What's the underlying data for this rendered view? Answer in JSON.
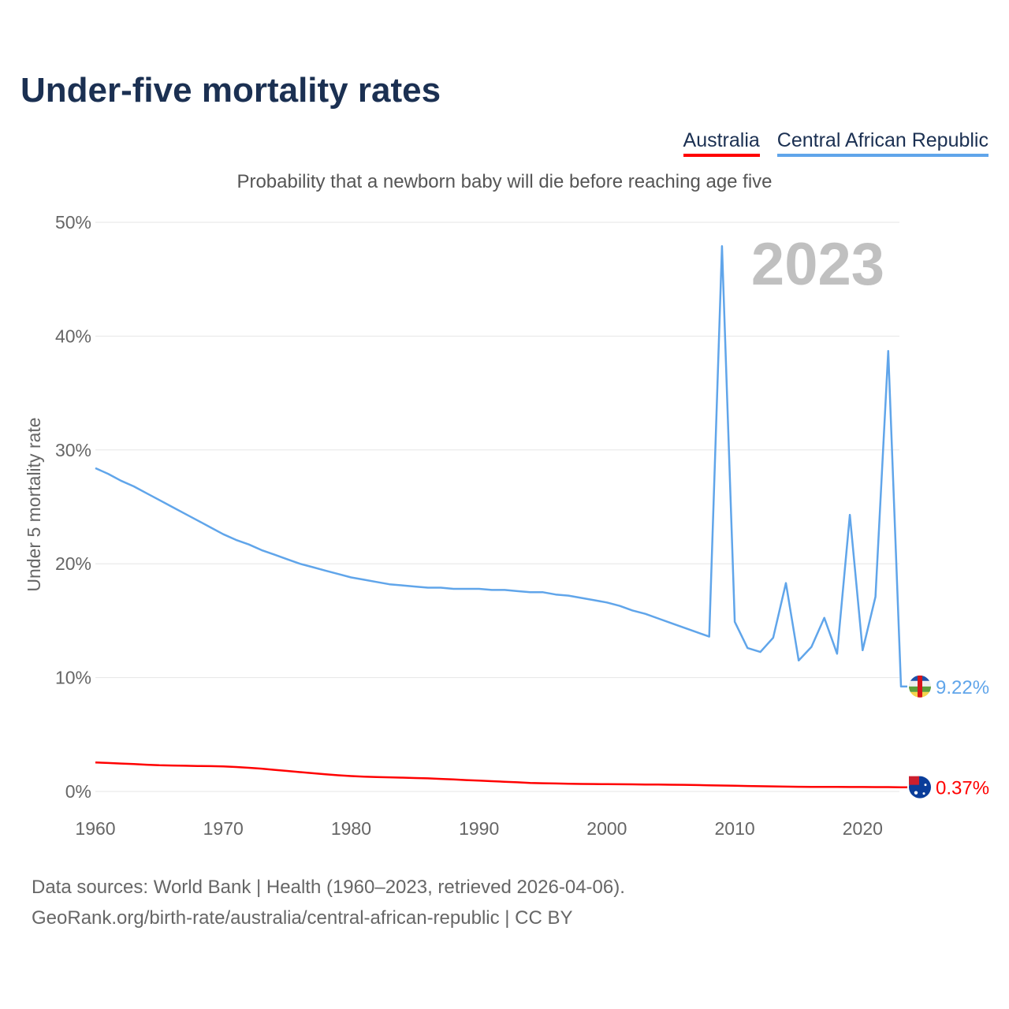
{
  "title": "Under-five mortality rates",
  "subtitle": "Probability that a newborn baby will die before reaching age five",
  "source_line1": "Data sources: World Bank | Health (1960–2023, retrieved 2026-04-06).",
  "source_line2": "GeoRank.org/birth-rate/australia/central-african-republic | CC BY",
  "legend": [
    {
      "label": "Australia",
      "color": "#ff0000"
    },
    {
      "label": "Central African Republic",
      "color": "#60a5ea"
    }
  ],
  "chart_data": {
    "type": "line",
    "title": "Under-five mortality rates",
    "ylabel": "Under 5 mortality rate",
    "xlabel": "",
    "year_label": "2023",
    "xlim": [
      1960,
      2023
    ],
    "ylim": [
      0,
      50
    ],
    "x_ticks": [
      1960,
      1970,
      1980,
      1990,
      2000,
      2010,
      2020
    ],
    "y_ticks": [
      0,
      10,
      20,
      30,
      40,
      50
    ],
    "y_tick_labels": [
      "0%",
      "10%",
      "20%",
      "30%",
      "40%",
      "50%"
    ],
    "grid": true,
    "x_start": 1960,
    "series": [
      {
        "name": "Central African Republic",
        "color": "#60a5ea",
        "end_label": "9.22%",
        "values": [
          28.4,
          27.9,
          27.3,
          26.8,
          26.2,
          25.6,
          25.0,
          24.4,
          23.8,
          23.2,
          22.6,
          22.1,
          21.7,
          21.2,
          20.8,
          20.4,
          20.0,
          19.7,
          19.4,
          19.1,
          18.8,
          18.6,
          18.4,
          18.2,
          18.1,
          18.0,
          17.9,
          17.9,
          17.8,
          17.8,
          17.8,
          17.7,
          17.7,
          17.6,
          17.5,
          17.5,
          17.3,
          17.2,
          17.0,
          16.8,
          16.6,
          16.3,
          15.9,
          15.6,
          15.2,
          14.8,
          14.4,
          14.0,
          13.6,
          47.9,
          14.9,
          12.6,
          12.25,
          13.5,
          18.3,
          11.5,
          12.7,
          15.25,
          12.1,
          24.3,
          12.4,
          17.1,
          38.7,
          9.22
        ]
      },
      {
        "name": "Australia",
        "color": "#ff0000",
        "end_label": "0.37%",
        "values": [
          2.55,
          2.5,
          2.45,
          2.4,
          2.35,
          2.3,
          2.28,
          2.26,
          2.24,
          2.22,
          2.2,
          2.15,
          2.08,
          2.0,
          1.9,
          1.8,
          1.7,
          1.6,
          1.5,
          1.42,
          1.35,
          1.3,
          1.27,
          1.24,
          1.21,
          1.18,
          1.15,
          1.1,
          1.05,
          1.0,
          0.95,
          0.9,
          0.85,
          0.8,
          0.75,
          0.72,
          0.7,
          0.68,
          0.66,
          0.65,
          0.64,
          0.63,
          0.62,
          0.61,
          0.6,
          0.59,
          0.58,
          0.56,
          0.54,
          0.52,
          0.5,
          0.48,
          0.46,
          0.44,
          0.42,
          0.41,
          0.4,
          0.4,
          0.4,
          0.39,
          0.39,
          0.38,
          0.38,
          0.37
        ]
      }
    ]
  }
}
